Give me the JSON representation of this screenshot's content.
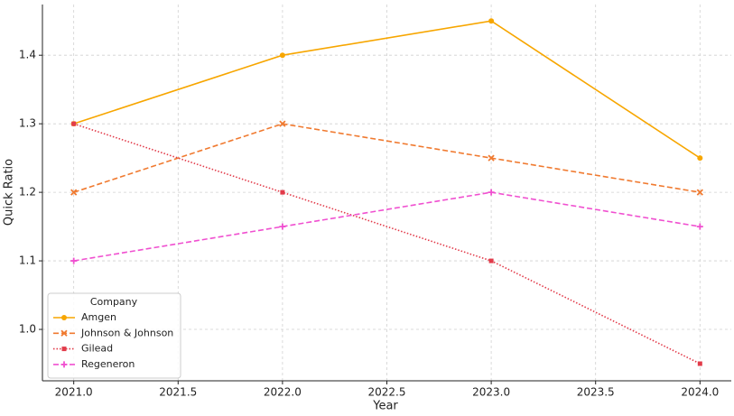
{
  "chart_data": {
    "type": "line",
    "x_label": "Year",
    "y_label": "Quick Ratio",
    "x": [
      2021,
      2022,
      2023,
      2024
    ],
    "series": [
      {
        "name": "Amgen",
        "color": "#f7a600",
        "dash": "solid",
        "marker": "circle",
        "values": [
          1.3,
          1.4,
          1.45,
          1.25
        ]
      },
      {
        "name": "Johnson & Johnson",
        "color": "#f07a30",
        "dash": "dashed",
        "marker": "x",
        "values": [
          1.2,
          1.3,
          1.25,
          1.2
        ]
      },
      {
        "name": "Gilead",
        "color": "#e23b4a",
        "dash": "dotted",
        "marker": "square",
        "values": [
          1.3,
          1.2,
          1.1,
          0.95
        ]
      },
      {
        "name": "Regeneron",
        "color": "#f050d0",
        "dash": "dashed",
        "marker": "plus",
        "values": [
          1.1,
          1.15,
          1.2,
          1.15
        ]
      }
    ],
    "xlim": [
      2020.85,
      2024.15
    ],
    "xticks": [
      {
        "value": 2021,
        "label": "2021.0"
      },
      {
        "value": 2021.5,
        "label": "2021.5"
      },
      {
        "value": 2022,
        "label": "2022.0"
      },
      {
        "value": 2022.5,
        "label": "2022.5"
      },
      {
        "value": 2023,
        "label": "2023.0"
      },
      {
        "value": 2023.5,
        "label": "2023.5"
      },
      {
        "value": 2024,
        "label": "2024.0"
      }
    ],
    "ylim": [
      0.925,
      1.474
    ],
    "yticks": [
      {
        "value": 1,
        "label": "1.0"
      },
      1.1,
      1.2,
      1.3,
      1.4
    ],
    "grid": true,
    "legend_title": "Company",
    "legend_position": "lower left"
  }
}
